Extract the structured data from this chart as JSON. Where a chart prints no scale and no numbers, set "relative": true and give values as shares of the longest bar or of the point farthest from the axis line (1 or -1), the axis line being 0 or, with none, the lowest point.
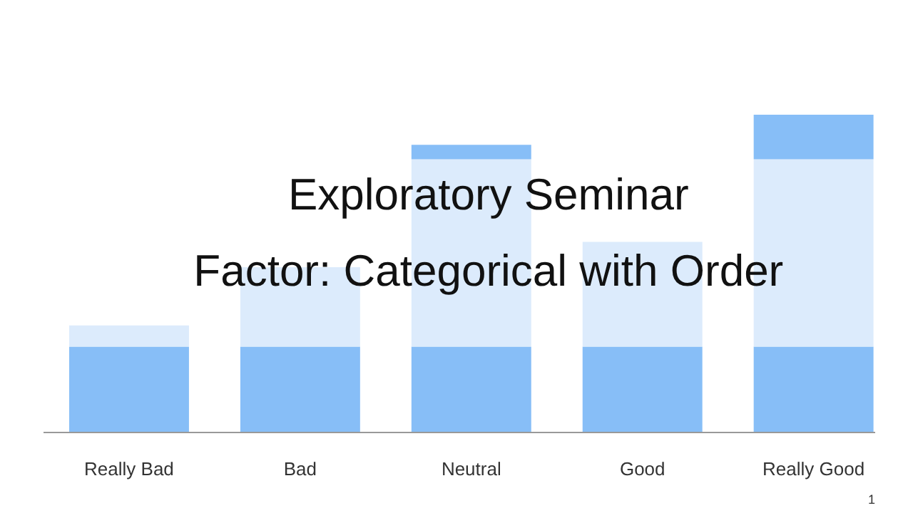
{
  "chart_data": {
    "type": "bar",
    "title": "Exploratory Seminar",
    "subtitle": "Factor: Categorical with Order",
    "annotations": [
      "1"
    ],
    "categories": [
      "Really Bad",
      "Bad",
      "Neutral",
      "Good",
      "Really Good"
    ],
    "stacked": true,
    "relative": true,
    "grid": false,
    "series": [
      {
        "color": "#87bef7",
        "values": [
          0.27,
          0.27,
          0.27,
          0.27,
          0.27
        ]
      },
      {
        "color": "#dcebfc",
        "values": [
          0.067,
          0.25,
          0.59,
          0.33,
          0.59
        ]
      },
      {
        "color": "#87bef7",
        "values": [
          null,
          null,
          0.045,
          null,
          0.14
        ]
      }
    ]
  }
}
